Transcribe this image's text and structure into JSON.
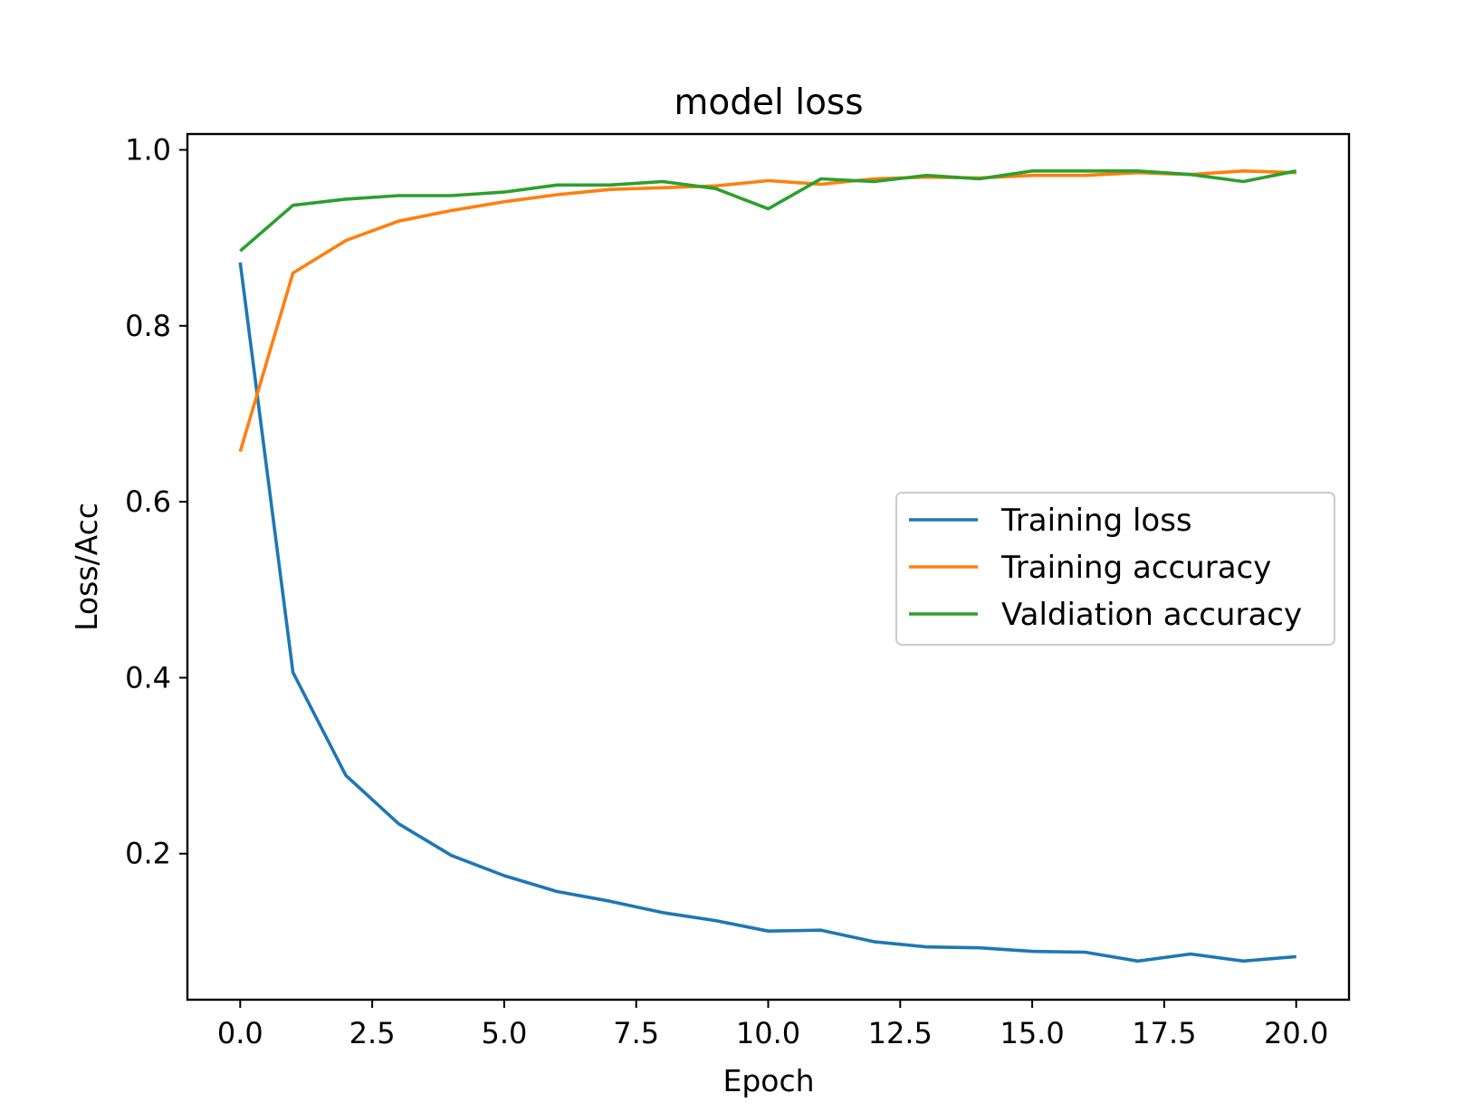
{
  "chart_data": {
    "type": "line",
    "title": "model loss",
    "xlabel": "Epoch",
    "ylabel": "Loss/Acc",
    "xlim": [
      -1.0,
      21.0
    ],
    "ylim": [
      0.034,
      1.018
    ],
    "xticks": [
      0.0,
      2.5,
      5.0,
      7.5,
      10.0,
      12.5,
      15.0,
      17.5,
      20.0
    ],
    "xtick_labels": [
      "0.0",
      "2.5",
      "5.0",
      "7.5",
      "10.0",
      "12.5",
      "15.0",
      "17.5",
      "20.0"
    ],
    "yticks": [
      0.2,
      0.4,
      0.6,
      0.8,
      1.0
    ],
    "ytick_labels": [
      "0.2",
      "0.4",
      "0.6",
      "0.8",
      "1.0"
    ],
    "grid": false,
    "legend_position": "center-right",
    "x": [
      0,
      1,
      2,
      3,
      4,
      5,
      6,
      7,
      8,
      9,
      10,
      11,
      12,
      13,
      14,
      15,
      16,
      17,
      18,
      19,
      20
    ],
    "series": [
      {
        "name": "Training loss",
        "color": "#1f77b4",
        "values": [
          0.872,
          0.406,
          0.289,
          0.234,
          0.198,
          0.175,
          0.157,
          0.146,
          0.133,
          0.124,
          0.112,
          0.113,
          0.1,
          0.094,
          0.093,
          0.089,
          0.088,
          0.078,
          0.086,
          0.078,
          0.083
        ]
      },
      {
        "name": "Training accuracy",
        "color": "#ff7f0e",
        "values": [
          0.657,
          0.86,
          0.897,
          0.919,
          0.931,
          0.941,
          0.949,
          0.955,
          0.957,
          0.959,
          0.965,
          0.961,
          0.967,
          0.969,
          0.968,
          0.971,
          0.971,
          0.974,
          0.972,
          0.976,
          0.974
        ]
      },
      {
        "name": "Valdiation accuracy",
        "color": "#2ca02c",
        "values": [
          0.885,
          0.937,
          0.944,
          0.948,
          0.948,
          0.952,
          0.96,
          0.96,
          0.964,
          0.956,
          0.933,
          0.967,
          0.964,
          0.971,
          0.967,
          0.976,
          0.976,
          0.976,
          0.972,
          0.964,
          0.976
        ]
      }
    ]
  }
}
